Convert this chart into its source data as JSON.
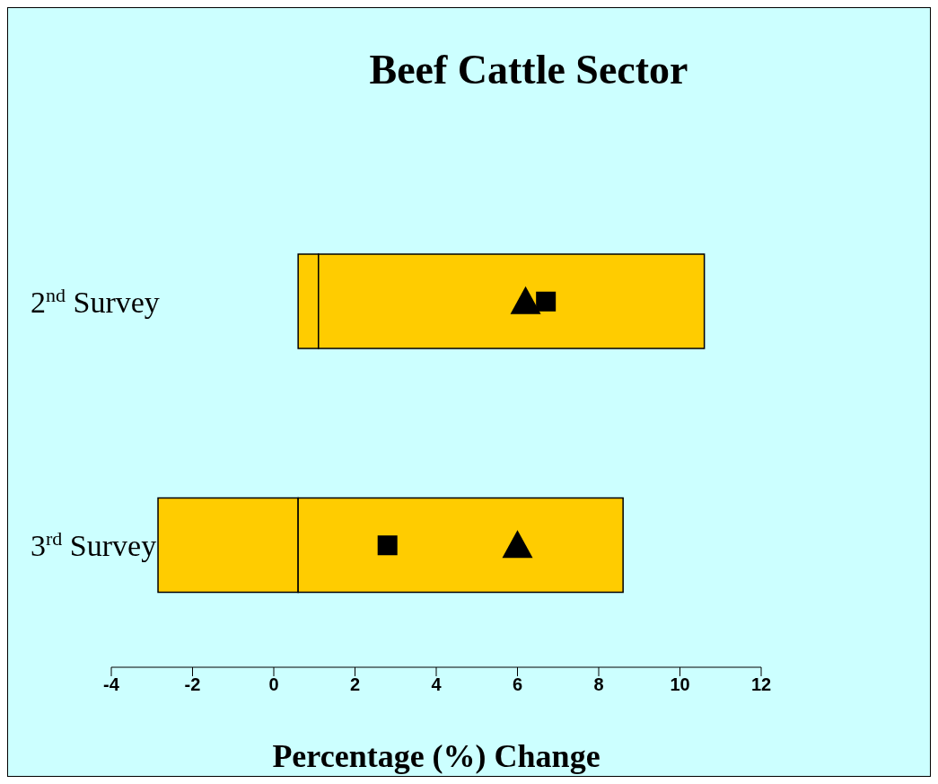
{
  "chart_data": {
    "type": "bar",
    "orientation": "horizontal",
    "title": "Beef Cattle Sector",
    "xlabel": "Percentage (%) Change",
    "categories": [
      "2$^{nd}$ Survey",
      "3$^{rd}$ Survey"
    ],
    "series": [
      {
        "color": "#ffcc00",
        "base": [
          0.6,
          -2.85
        ],
        "values": [
          0.5,
          3.45
        ]
      },
      {
        "color": "#ffcc00",
        "base": [
          1.1,
          0.6
        ],
        "values": [
          9.5,
          8.0
        ]
      },
      {
        "type": "scatter",
        "marker": "square",
        "color": "#000000",
        "values": [
          6.7,
          2.8
        ]
      },
      {
        "type": "scatter",
        "marker": "triangle",
        "color": "#000000",
        "values": [
          6.2,
          6.0
        ]
      }
    ],
    "xlim": [
      -4,
      12
    ],
    "xticks": [
      -4,
      -2,
      0,
      2,
      4,
      6,
      8,
      10,
      12
    ]
  }
}
